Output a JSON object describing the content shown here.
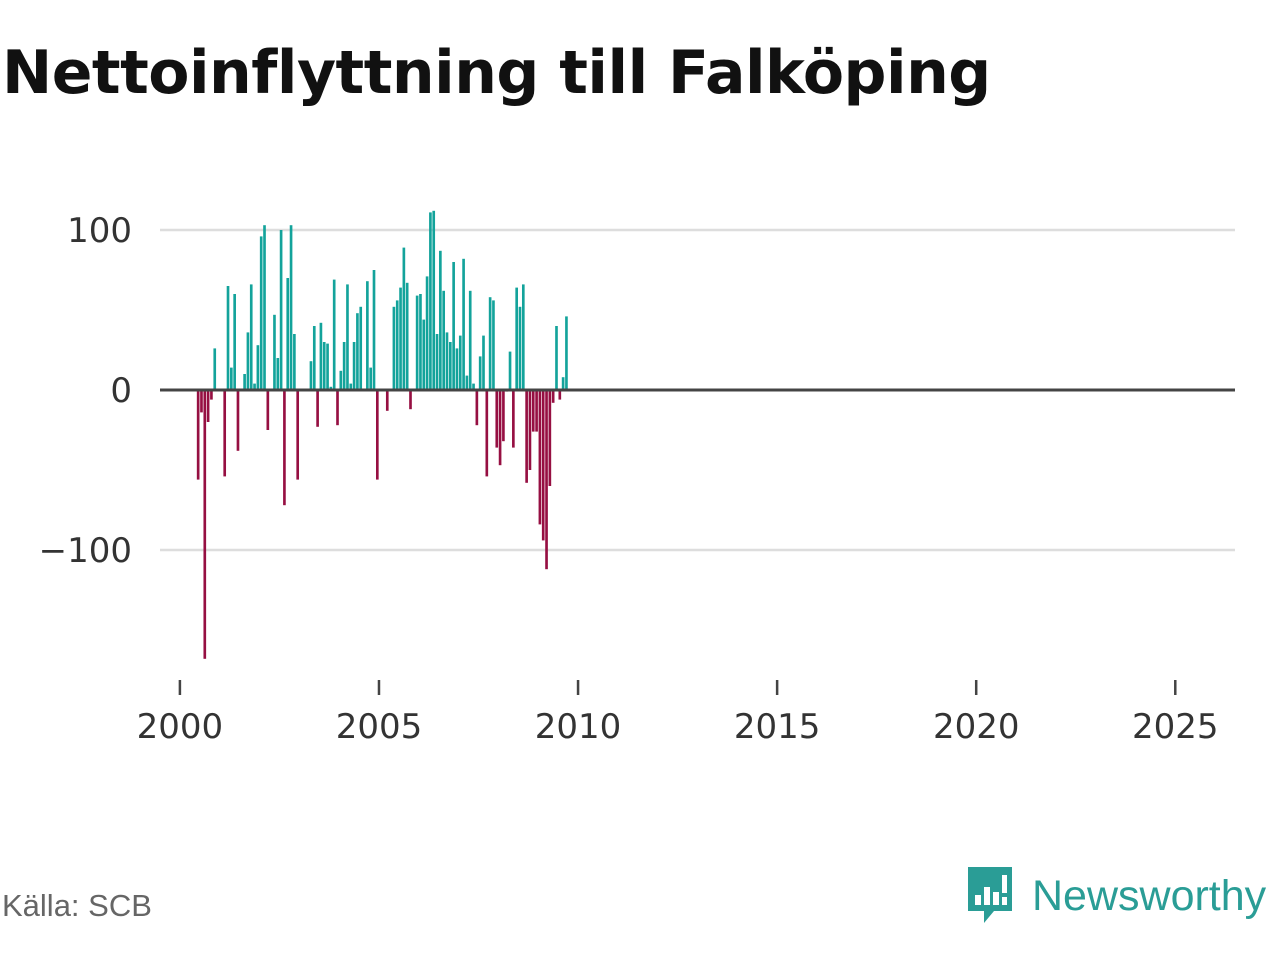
{
  "title": "Nettoinflyttning till Falköping",
  "source": "Källa: SCB",
  "brand": {
    "name": "Newsworthy",
    "icon": "newsworthy-logo-icon"
  },
  "colors": {
    "positive": "#13a39b",
    "negative": "#960f42",
    "grid": "#dddddd",
    "axis": "#444444",
    "text": "#333333",
    "brand": "#2a9d96"
  },
  "chart_data": {
    "type": "bar",
    "title": "Nettoinflyttning till Falköping",
    "xlabel": "",
    "ylabel": "",
    "ylim": [
      -175,
      125
    ],
    "xlim": [
      1999.5,
      2026.5
    ],
    "yticks": [
      100,
      0,
      -100
    ],
    "ytick_labels": [
      "100",
      "0",
      "−100"
    ],
    "xticks": [
      2000,
      2005,
      2010,
      2015,
      2020,
      2025
    ],
    "xtick_labels": [
      "2000",
      "2005",
      "2010",
      "2015",
      "2020",
      "2025"
    ],
    "grid": true,
    "bar_width_months": 0.8,
    "start": "2000-01",
    "values": [
      null,
      null,
      null,
      null,
      null,
      -56,
      -14,
      -168,
      -20,
      -6,
      26,
      null,
      null,
      -54,
      65,
      14,
      60,
      -38,
      null,
      10,
      36,
      66,
      4,
      28,
      96,
      103,
      -25,
      null,
      47,
      20,
      100,
      -72,
      70,
      103,
      35,
      -56,
      null,
      null,
      null,
      18,
      40,
      -23,
      42,
      30,
      29,
      2,
      69,
      -22,
      12,
      30,
      66,
      4,
      30,
      48,
      52,
      null,
      68,
      14,
      75,
      -56,
      null,
      null,
      -13,
      null,
      52,
      56,
      64,
      89,
      67,
      -12,
      null,
      59,
      60,
      44,
      71,
      111,
      112,
      35,
      87,
      62,
      36,
      30,
      80,
      26,
      34,
      82,
      9,
      62,
      4,
      -22,
      21,
      34,
      -54,
      58,
      56,
      -36,
      -47,
      -32,
      -1,
      24,
      -36,
      64,
      52,
      66,
      -58,
      -50,
      -26,
      -26,
      -84,
      -94,
      -112,
      -60,
      -8,
      40,
      -6,
      8,
      46
    ]
  }
}
